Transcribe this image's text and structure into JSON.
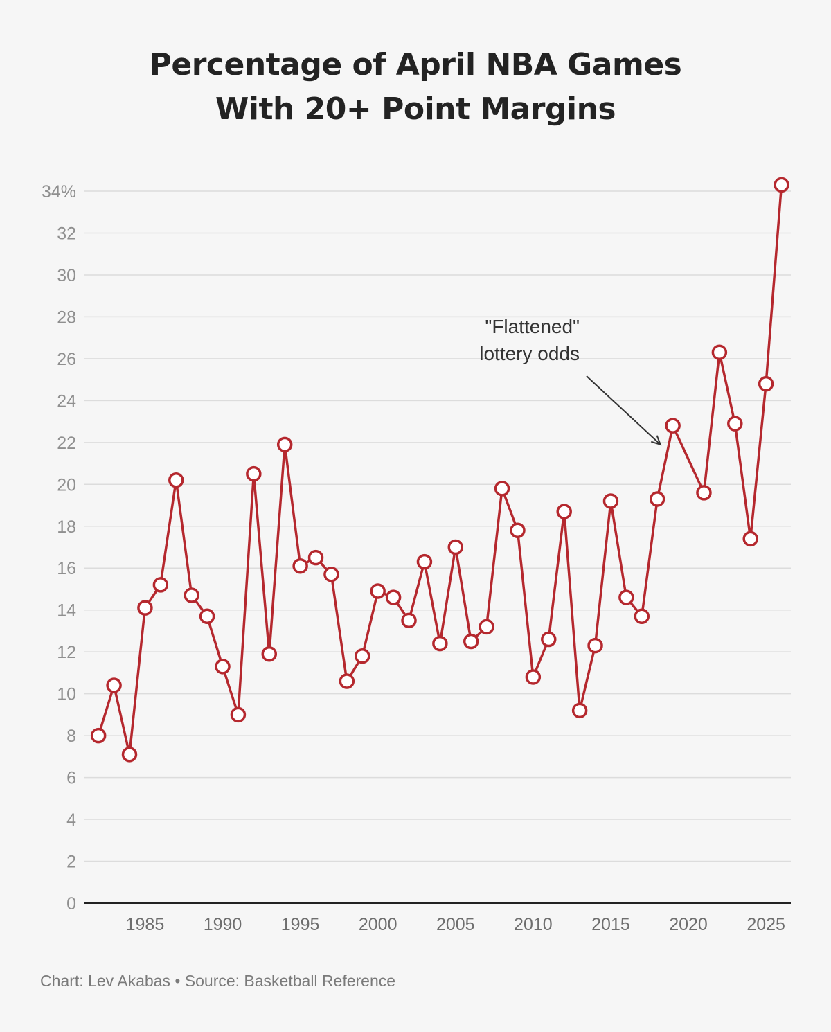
{
  "chart_data": {
    "type": "line",
    "title_lines": [
      "Percentage of April NBA Games",
      "With 20+ Point Margins"
    ],
    "y_tick_labels": [
      "0",
      "2",
      "4",
      "6",
      "8",
      "10",
      "12",
      "14",
      "16",
      "18",
      "20",
      "22",
      "24",
      "26",
      "28",
      "30",
      "32",
      "34%"
    ],
    "y_ticks": [
      0,
      2,
      4,
      6,
      8,
      10,
      12,
      14,
      16,
      18,
      20,
      22,
      24,
      26,
      28,
      30,
      32,
      34
    ],
    "ylim": [
      0,
      34
    ],
    "x_tick_labels": [
      "1985",
      "1990",
      "1995",
      "2000",
      "2005",
      "2010",
      "2015",
      "2020",
      "2025"
    ],
    "x_ticks": [
      1985,
      1990,
      1995,
      2000,
      2005,
      2010,
      2015,
      2020,
      2025
    ],
    "xlim": [
      1981.1,
      2026.6
    ],
    "grid": true,
    "series": [
      {
        "color": "#b5282e",
        "x": [
          1982,
          1983,
          1984,
          1985,
          1986,
          1987,
          1988,
          1989,
          1990,
          1991,
          1992,
          1993,
          1994,
          1995,
          1996,
          1997,
          1998,
          1999,
          2000,
          2001,
          2002,
          2003,
          2004,
          2005,
          2006,
          2007,
          2008,
          2009,
          2010,
          2011,
          2012,
          2013,
          2014,
          2015,
          2016,
          2017,
          2018,
          2019,
          2021,
          2022,
          2023,
          2024,
          2025,
          2026
        ],
        "values": [
          8.0,
          10.4,
          7.1,
          14.1,
          15.2,
          20.2,
          14.7,
          13.7,
          11.3,
          9.0,
          20.5,
          11.9,
          21.9,
          16.1,
          16.5,
          15.7,
          10.6,
          11.8,
          14.9,
          14.6,
          13.5,
          16.3,
          12.4,
          17.0,
          12.5,
          13.2,
          19.8,
          17.8,
          10.8,
          12.6,
          18.7,
          9.2,
          12.3,
          19.2,
          14.6,
          13.7,
          19.3,
          22.8,
          19.6,
          26.3,
          22.9,
          17.4,
          24.8,
          34.3
        ]
      }
    ],
    "annotation": {
      "lines": [
        "\"Flattened\"",
        "lottery odds"
      ],
      "points_to": {
        "x": 2018.2,
        "y": 21.9
      }
    },
    "source": "Chart: Lev Akabas • Source: Basketball Reference"
  }
}
